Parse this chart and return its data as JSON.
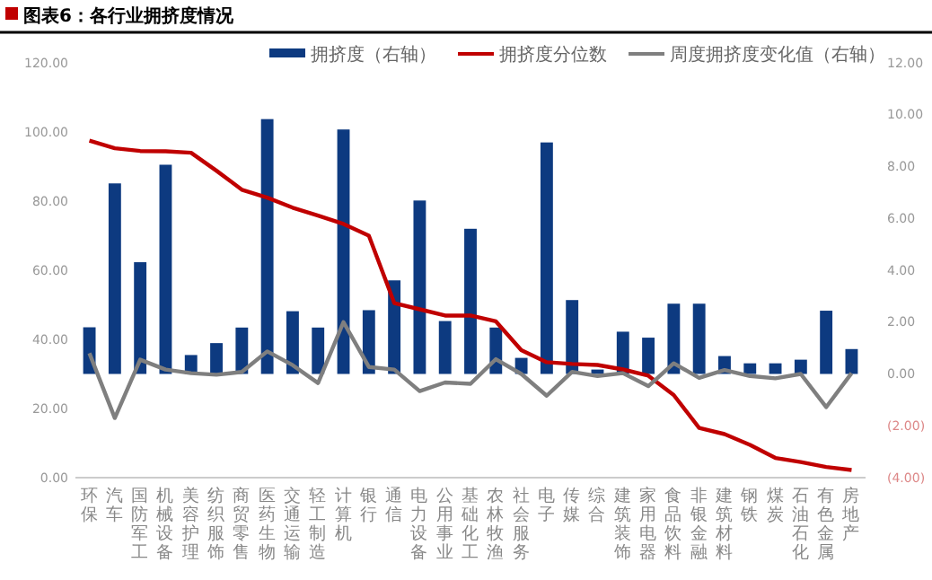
{
  "chart_data": {
    "type": "bar",
    "title": "图表6：各行业拥挤度情况",
    "categories": [
      "环保",
      "汽车",
      "国防军工",
      "机械设备",
      "美容护理",
      "纺织服饰",
      "商贸零售",
      "医药生物",
      "交通运输",
      "轻工制造",
      "计算机",
      "银行",
      "通信",
      "电力设备",
      "公用事业",
      "基础化工",
      "农林牧渔",
      "社会服务",
      "电子",
      "传媒",
      "综合",
      "建筑装饰",
      "家用电器",
      "食品饮料",
      "非银金融",
      "建筑材料",
      "钢铁",
      "煤炭",
      "石油石化",
      "有色金属",
      "房地产"
    ],
    "series": [
      {
        "name": "拥挤度（右轴）",
        "axis": "y2",
        "color": "#0d3a80",
        "values": [
          1.8,
          7.35,
          4.31,
          8.07,
          0.73,
          1.19,
          1.79,
          9.83,
          2.42,
          1.79,
          9.43,
          2.46,
          3.61,
          6.69,
          2.04,
          5.6,
          1.79,
          0.62,
          8.93,
          2.85,
          0.17,
          1.63,
          1.4,
          2.71,
          2.71,
          0.69,
          0.41,
          0.41,
          0.55,
          2.44,
          0.96
        ]
      },
      {
        "name": "拥挤度分位数",
        "type": "line",
        "color": "#c00000",
        "values": [
          97.5,
          95.3,
          94.5,
          94.4,
          94.0,
          88.8,
          83.3,
          81.0,
          78.1,
          75.8,
          73.4,
          70.0,
          50.5,
          48.7,
          46.9,
          46.9,
          45.2,
          36.9,
          33.4,
          32.9,
          32.6,
          31.3,
          29.5,
          23.9,
          14.4,
          12.6,
          9.5,
          5.7,
          4.5,
          3.1,
          2.2
        ]
      },
      {
        "name": "周度拥挤度变化值（右轴）",
        "type": "line",
        "axis": "y2",
        "color": "#7f7f7f",
        "values": [
          0.8,
          -1.7,
          0.55,
          0.17,
          0.03,
          -0.03,
          0.08,
          0.87,
          0.34,
          -0.35,
          2.0,
          0.27,
          0.17,
          -0.66,
          -0.33,
          -0.38,
          0.57,
          0,
          -0.84,
          0.08,
          -0.08,
          0.03,
          -0.47,
          0.41,
          -0.15,
          0.15,
          -0.08,
          -0.17,
          0,
          -1.28,
          0.03
        ]
      }
    ],
    "ylim": [
      0,
      120
    ],
    "yticks": [
      {
        "value": 0,
        "label": "0.00"
      },
      {
        "value": 20,
        "label": "20.00"
      },
      {
        "value": 40,
        "label": "40.00"
      },
      {
        "value": 60,
        "label": "60.00"
      },
      {
        "value": 80,
        "label": "80.00"
      },
      {
        "value": 100,
        "label": "100.00"
      },
      {
        "value": 120,
        "label": "120.00"
      }
    ],
    "y2lim": [
      -4,
      12
    ],
    "y2ticks": [
      {
        "value": -4,
        "label": "(4.00)"
      },
      {
        "value": -2,
        "label": "(2.00)"
      },
      {
        "value": 0,
        "label": "0.00"
      },
      {
        "value": 2,
        "label": "2.00"
      },
      {
        "value": 4,
        "label": "4.00"
      },
      {
        "value": 6,
        "label": "6.00"
      },
      {
        "value": 8,
        "label": "8.00"
      },
      {
        "value": 10,
        "label": "10.00"
      },
      {
        "value": 12,
        "label": "12.00"
      }
    ],
    "legend": "top",
    "grid": false
  }
}
